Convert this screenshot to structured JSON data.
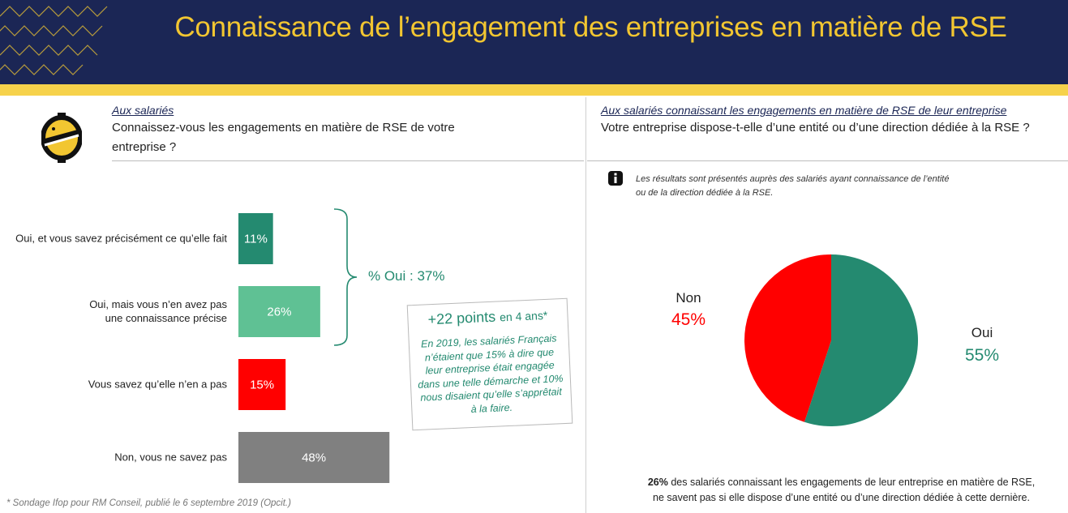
{
  "header": {
    "title": "Connaissance de l’engagement des entreprises en matière de RSE"
  },
  "left_panel": {
    "audience": "Aux salariés",
    "question_line1": "Connaissez-vous les engagements en matière de RSE de votre",
    "question_line2": "entreprise ?",
    "brace_label": "% Oui : 37%",
    "note": {
      "title_big": "+22 points ",
      "title_small": "en 4 ans*",
      "body": "En 2019, les salariés Français n’étaient que 15% à dire que leur entreprise était engagée dans une telle démarche et 10% nous disaient qu’elle s’apprêtait à la faire."
    }
  },
  "right_panel": {
    "audience": "Aux salariés connaissant les engagements en matière de RSE de leur entreprise",
    "question": "Votre entreprise dispose-t-elle d’une entité ou d’une direction dédiée à la RSE ?",
    "info_line1": "Les résultats sont présentés auprès des salariés ayant connaissance de l’entité",
    "info_line2": "ou de la direction dédiée à la RSE.",
    "summary_bold": "26%",
    "summary_rest_line1": " des salariés connaissant les engagements de leur entreprise en matière de RSE,",
    "summary_line2": "ne savent pas si elle dispose d’une entité ou d’une direction dédiée à cette dernière."
  },
  "footnote": "* Sondage Ifop pour RM Conseil, publié le 6 septembre 2019 (Opcit.)",
  "chart_data": [
    {
      "type": "bar",
      "orientation": "horizontal",
      "categories": [
        [
          "Oui, et vous savez précisément ce qu’elle fait"
        ],
        [
          "Oui, mais vous n’en avez pas",
          "une connaissance précise"
        ],
        [
          "Vous savez qu’elle n’en a pas"
        ],
        [
          "Non, vous ne savez pas"
        ]
      ],
      "values": [
        11,
        26,
        15,
        48
      ],
      "value_labels": [
        "11%",
        "26%",
        "15%",
        "48%"
      ],
      "colors": [
        "#248a70",
        "#5fc194",
        "#ff0000",
        "#808080"
      ],
      "xlim": [
        0,
        100
      ]
    },
    {
      "type": "pie",
      "labels": [
        "Oui",
        "Non"
      ],
      "values": [
        55,
        45
      ],
      "value_labels": [
        "55%",
        "45%"
      ],
      "colors": [
        "#248a70",
        "#ff0000"
      ],
      "value_label_colors": [
        "#248a70",
        "#ff0000"
      ]
    }
  ],
  "colors": {
    "header_bg": "#1b2655",
    "title": "#f2c631",
    "stripe": "#f6d24b",
    "accent_green": "#248a70"
  }
}
